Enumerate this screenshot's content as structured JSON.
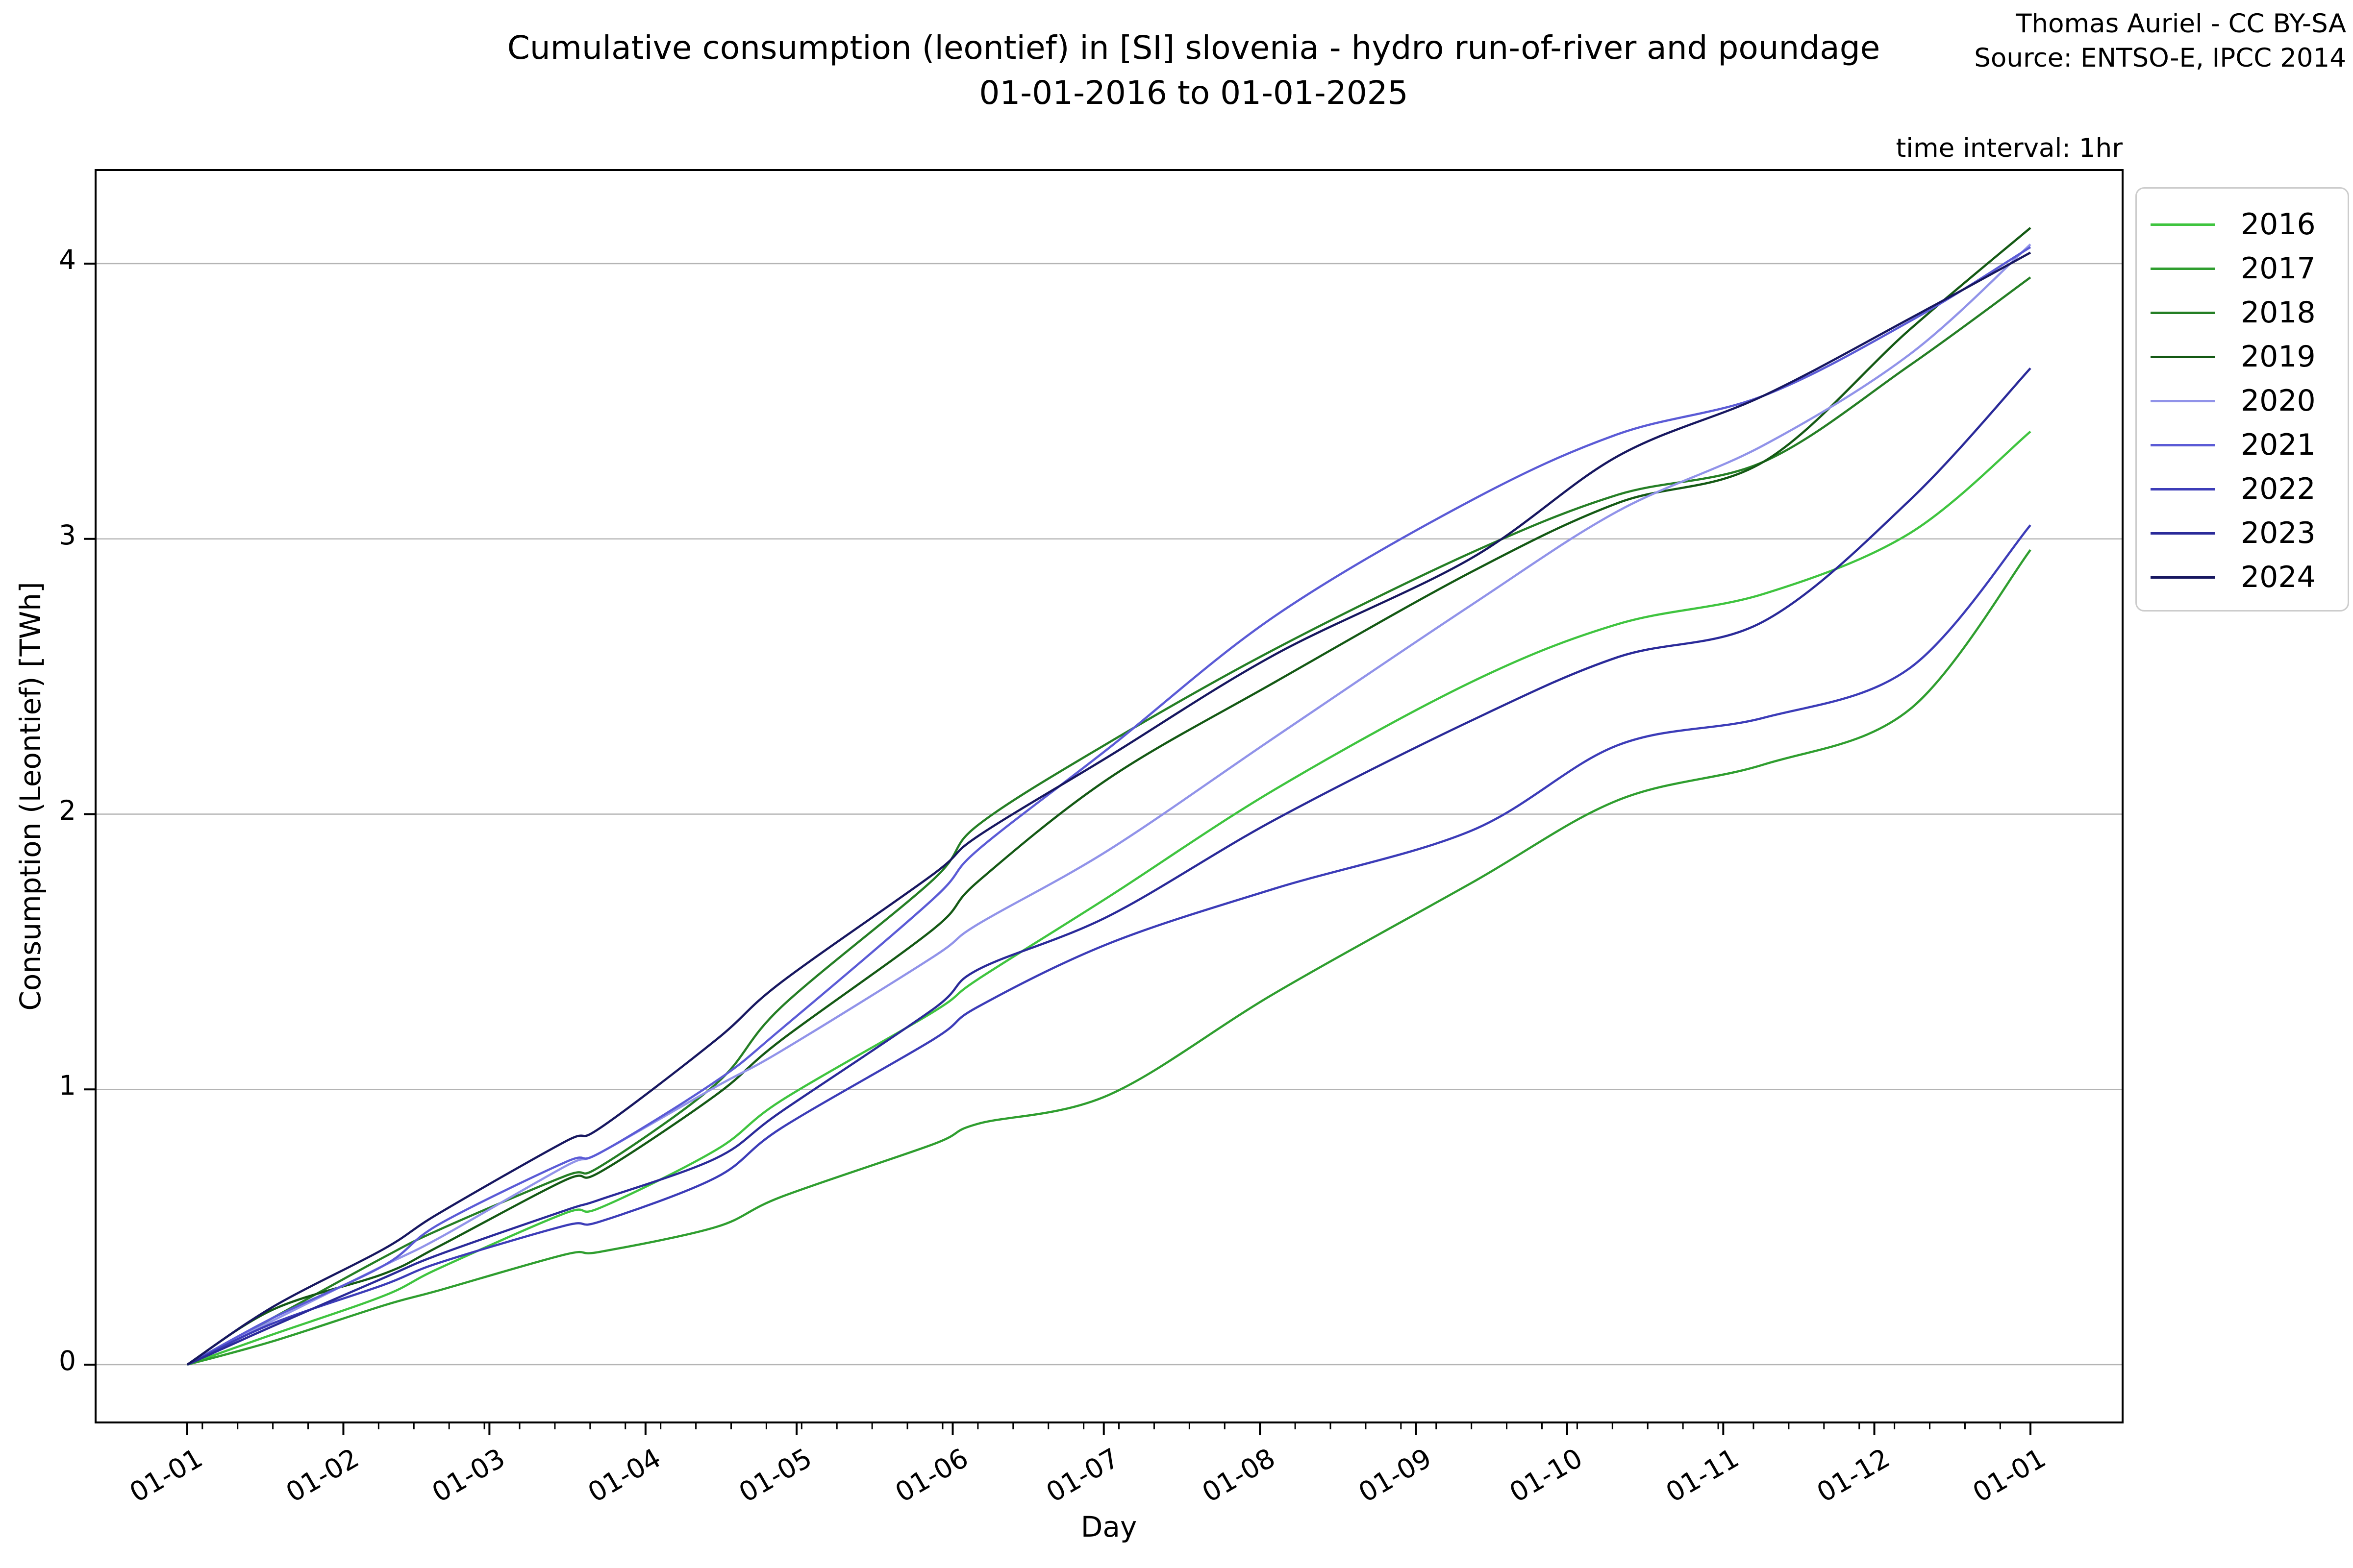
{
  "header": {
    "title_line1": "Cumulative consumption (leontief) in [SI] slovenia - hydro run-of-river and poundage",
    "title_line2": "01-01-2016 to 01-01-2025",
    "credit": "Thomas Auriel - CC BY-SA",
    "source": "Source: ENTSO-E, IPCC 2014",
    "time_interval": "time interval: 1hr"
  },
  "chart_data": {
    "type": "line",
    "title": "Cumulative consumption (leontief) in [SI] slovenia - hydro run-of-river and poundage 01-01-2016 to 01-01-2025",
    "xlabel": "Day",
    "ylabel": "Consumption (Leontief) [TWh]",
    "grid": "horizontal-only",
    "legend_position": "upper-right-outside",
    "yticks": [
      0,
      1,
      2,
      3,
      4
    ],
    "ylim": [
      -0.21,
      4.34
    ],
    "xlim_days": [
      -18.2,
      384.3
    ],
    "x_tick_days": [
      0,
      31,
      60,
      91,
      121,
      152,
      182,
      213,
      244,
      274,
      305,
      335,
      366
    ],
    "x_tick_labels": [
      "01-01",
      "01-02",
      "01-03",
      "01-04",
      "01-05",
      "01-06",
      "01-07",
      "01-08",
      "01-09",
      "01-10",
      "01-11",
      "01-12",
      "01-01"
    ],
    "minor_tick_step_days": 7,
    "minor_tick_start_day": 3,
    "x_days": [
      0,
      17,
      39,
      50,
      75,
      82,
      105,
      118,
      148,
      157,
      183,
      216,
      255,
      284,
      313,
      342,
      366
    ],
    "series": [
      {
        "name": "2016",
        "color": "#3fc43f",
        "values": [
          0,
          0.11,
          0.25,
          0.35,
          0.55,
          0.57,
          0.78,
          0.96,
          1.28,
          1.4,
          1.7,
          2.09,
          2.48,
          2.69,
          2.8,
          3.02,
          3.39
        ]
      },
      {
        "name": "2017",
        "color": "#2f9e2f",
        "values": [
          0,
          0.085,
          0.215,
          0.27,
          0.4,
          0.41,
          0.5,
          0.61,
          0.8,
          0.875,
          0.98,
          1.35,
          1.75,
          2.05,
          2.18,
          2.38,
          2.96
        ]
      },
      {
        "name": "2018",
        "color": "#257f25",
        "values": [
          0,
          0.17,
          0.39,
          0.49,
          0.685,
          0.72,
          1.02,
          1.3,
          1.76,
          1.96,
          2.26,
          2.6,
          2.95,
          3.16,
          3.28,
          3.63,
          3.95
        ]
      },
      {
        "name": "2019",
        "color": "#145914",
        "values": [
          0,
          0.2,
          0.33,
          0.43,
          0.67,
          0.7,
          0.98,
          1.18,
          1.58,
          1.755,
          2.13,
          2.48,
          2.88,
          3.13,
          3.28,
          3.76,
          4.13
        ]
      },
      {
        "name": "2020",
        "color": "#9193e9",
        "values": [
          0,
          0.16,
          0.36,
          0.46,
          0.72,
          0.77,
          1.01,
          1.14,
          1.48,
          1.6,
          1.87,
          2.28,
          2.76,
          3.1,
          3.34,
          3.67,
          4.07
        ]
      },
      {
        "name": "2021",
        "color": "#5b5bd6",
        "values": [
          0,
          0.17,
          0.36,
          0.51,
          0.735,
          0.77,
          1.03,
          1.22,
          1.69,
          1.87,
          2.24,
          2.72,
          3.14,
          3.38,
          3.52,
          3.79,
          4.06
        ]
      },
      {
        "name": "2022",
        "color": "#3c3cb8",
        "values": [
          0,
          0.15,
          0.29,
          0.37,
          0.505,
          0.52,
          0.68,
          0.86,
          1.18,
          1.3,
          1.53,
          1.73,
          1.94,
          2.25,
          2.35,
          2.53,
          3.05
        ]
      },
      {
        "name": "2023",
        "color": "#2a2a99",
        "values": [
          0,
          0.14,
          0.315,
          0.4,
          0.56,
          0.6,
          0.75,
          0.92,
          1.29,
          1.435,
          1.63,
          1.98,
          2.34,
          2.57,
          2.7,
          3.14,
          3.62
        ]
      },
      {
        "name": "2024",
        "color": "#171760",
        "values": [
          0,
          0.21,
          0.42,
          0.55,
          0.81,
          0.86,
          1.18,
          1.39,
          1.78,
          1.92,
          2.21,
          2.58,
          2.93,
          3.3,
          3.52,
          3.8,
          4.04
        ]
      }
    ]
  },
  "layout_colors": {
    "grid": "#b4b4b4",
    "spine": "#000000",
    "legend_border": "#cccccc"
  }
}
